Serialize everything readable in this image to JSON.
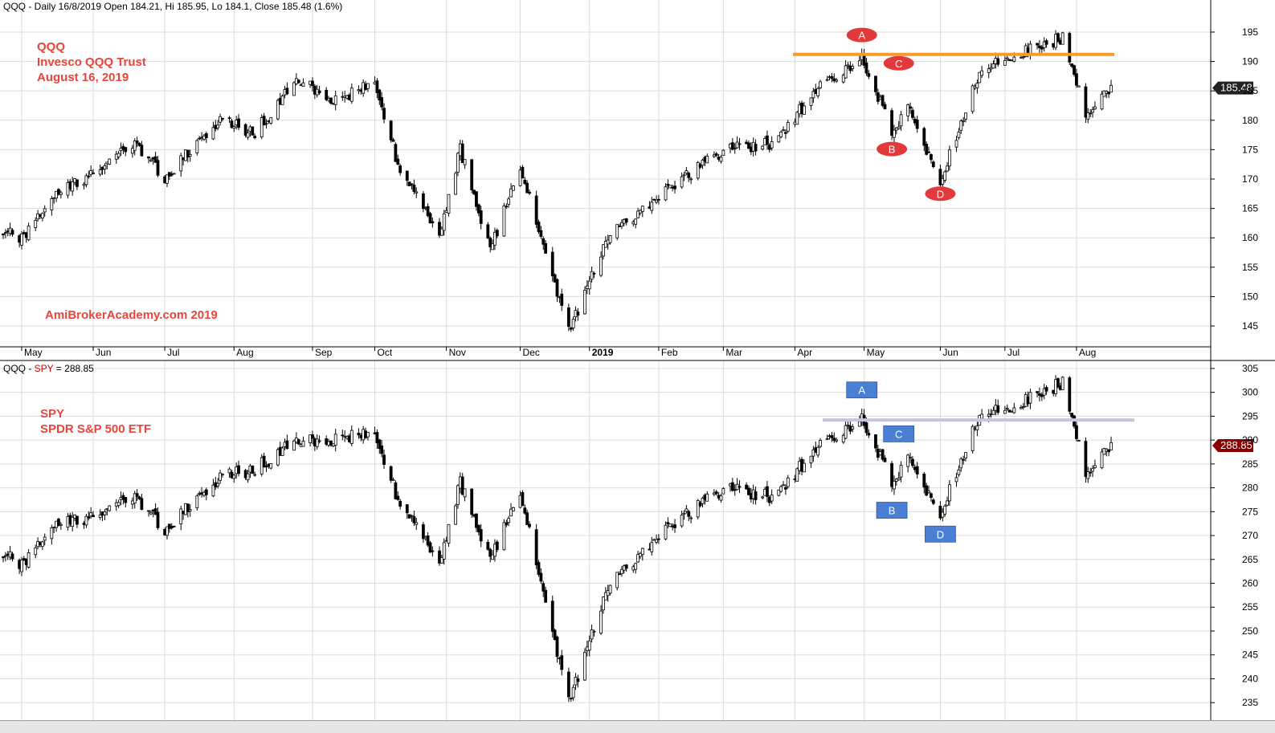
{
  "header_top": "QQQ - Daily 16/8/2019 Open 184.21, Hi 185.95, Lo 184.1, Close 185.48 (1.6%)",
  "header_bottom_prefix": "QQQ - ",
  "header_bottom_symbol": "SPY",
  "header_bottom_suffix": " = 288.85",
  "annotations_top": [
    "QQQ",
    "Invesco QQQ Trust",
    "August 16, 2019"
  ],
  "watermark": "AmiBrokerAcademy.com   2019",
  "annotations_bottom": [
    "SPY",
    "SPDR S&P 500 ETF"
  ],
  "colors": {
    "accent_red": "#e8453c",
    "orange_line": "#f79a2e",
    "lavender_line": "#c9c3e0",
    "blue_label": "#4a7fd4",
    "red_label": "#e23a3a",
    "price_tag_dark": "#222222",
    "price_tag_red": "#8b0000"
  },
  "chart_data": [
    {
      "type": "candlestick",
      "title": "",
      "symbol": "QQQ",
      "period": "Daily",
      "months": [
        "May",
        "Jun",
        "Jul",
        "Aug",
        "Sep",
        "Oct",
        "Nov",
        "Dec",
        "2019",
        "Feb",
        "Mar",
        "Apr",
        "May",
        "Jun",
        "Jul",
        "Aug"
      ],
      "ylim": [
        142,
        198
      ],
      "y_ticks": [
        145,
        150,
        155,
        160,
        165,
        170,
        175,
        180,
        185,
        190,
        195
      ],
      "last_price_label": "185.48",
      "last_price": 185.48,
      "resistance_level": 191.2,
      "points": [
        {
          "label": "A",
          "x": "2019-04-30",
          "y": 194.5
        },
        {
          "label": "B",
          "x": "2019-05-13",
          "y": 175.1
        },
        {
          "label": "C",
          "x": "2019-05-16",
          "y": 189.7
        },
        {
          "label": "D",
          "x": "2019-06-03",
          "y": 167.5
        }
      ],
      "monthly_path": [
        {
          "date": "2018-04-23",
          "close": 161
        },
        {
          "date": "2018-05-01",
          "close": 160
        },
        {
          "date": "2018-05-15",
          "close": 167
        },
        {
          "date": "2018-06-01",
          "close": 171
        },
        {
          "date": "2018-06-20",
          "close": 176
        },
        {
          "date": "2018-07-02",
          "close": 170
        },
        {
          "date": "2018-07-25",
          "close": 180
        },
        {
          "date": "2018-08-10",
          "close": 178
        },
        {
          "date": "2018-08-29",
          "close": 187
        },
        {
          "date": "2018-09-15",
          "close": 183
        },
        {
          "date": "2018-10-01",
          "close": 187
        },
        {
          "date": "2018-10-12",
          "close": 171
        },
        {
          "date": "2018-10-29",
          "close": 161
        },
        {
          "date": "2018-11-07",
          "close": 175
        },
        {
          "date": "2018-11-20",
          "close": 158
        },
        {
          "date": "2018-12-03",
          "close": 172
        },
        {
          "date": "2018-12-24",
          "close": 144
        },
        {
          "date": "2019-01-10",
          "close": 160
        },
        {
          "date": "2019-02-01",
          "close": 167
        },
        {
          "date": "2019-03-01",
          "close": 175
        },
        {
          "date": "2019-03-22",
          "close": 176
        },
        {
          "date": "2019-04-10",
          "close": 185
        },
        {
          "date": "2019-04-30",
          "close": 191
        },
        {
          "date": "2019-05-13",
          "close": 178
        },
        {
          "date": "2019-05-20",
          "close": 182
        },
        {
          "date": "2019-06-03",
          "close": 170
        },
        {
          "date": "2019-06-20",
          "close": 188
        },
        {
          "date": "2019-07-03",
          "close": 191
        },
        {
          "date": "2019-07-26",
          "close": 194
        },
        {
          "date": "2019-08-05",
          "close": 181
        },
        {
          "date": "2019-08-16",
          "close": 185.48
        }
      ]
    },
    {
      "type": "candlestick",
      "title": "",
      "symbol": "SPY",
      "period": "Daily",
      "months": [],
      "ylim": [
        232,
        306
      ],
      "y_ticks": [
        235,
        240,
        245,
        250,
        255,
        260,
        265,
        270,
        275,
        280,
        285,
        290,
        295,
        300,
        305
      ],
      "last_price_label": "288.85",
      "last_price": 288.85,
      "resistance_level": 294.2,
      "points": [
        {
          "label": "A",
          "x": "2019-04-30",
          "y": 300.5
        },
        {
          "label": "B",
          "x": "2019-05-13",
          "y": 275.3
        },
        {
          "label": "C",
          "x": "2019-05-16",
          "y": 291.3
        },
        {
          "label": "D",
          "x": "2019-06-03",
          "y": 270.3
        }
      ],
      "monthly_path": [
        {
          "date": "2018-04-23",
          "close": 266
        },
        {
          "date": "2018-05-01",
          "close": 264
        },
        {
          "date": "2018-05-15",
          "close": 272
        },
        {
          "date": "2018-06-01",
          "close": 274
        },
        {
          "date": "2018-06-20",
          "close": 278
        },
        {
          "date": "2018-07-02",
          "close": 271
        },
        {
          "date": "2018-07-25",
          "close": 282
        },
        {
          "date": "2018-08-10",
          "close": 284
        },
        {
          "date": "2018-08-29",
          "close": 290
        },
        {
          "date": "2018-09-15",
          "close": 290
        },
        {
          "date": "2018-10-01",
          "close": 292
        },
        {
          "date": "2018-10-12",
          "close": 276
        },
        {
          "date": "2018-10-29",
          "close": 265
        },
        {
          "date": "2018-11-07",
          "close": 281
        },
        {
          "date": "2018-11-20",
          "close": 265
        },
        {
          "date": "2018-12-03",
          "close": 279
        },
        {
          "date": "2018-12-24",
          "close": 235
        },
        {
          "date": "2019-01-10",
          "close": 259
        },
        {
          "date": "2019-02-01",
          "close": 270
        },
        {
          "date": "2019-03-01",
          "close": 280
        },
        {
          "date": "2019-03-22",
          "close": 278
        },
        {
          "date": "2019-04-10",
          "close": 288
        },
        {
          "date": "2019-04-30",
          "close": 295
        },
        {
          "date": "2019-05-13",
          "close": 281
        },
        {
          "date": "2019-05-20",
          "close": 286
        },
        {
          "date": "2019-06-03",
          "close": 275
        },
        {
          "date": "2019-06-20",
          "close": 295
        },
        {
          "date": "2019-07-03",
          "close": 297
        },
        {
          "date": "2019-07-26",
          "close": 302
        },
        {
          "date": "2019-08-05",
          "close": 283
        },
        {
          "date": "2019-08-16",
          "close": 288.85
        }
      ]
    }
  ]
}
